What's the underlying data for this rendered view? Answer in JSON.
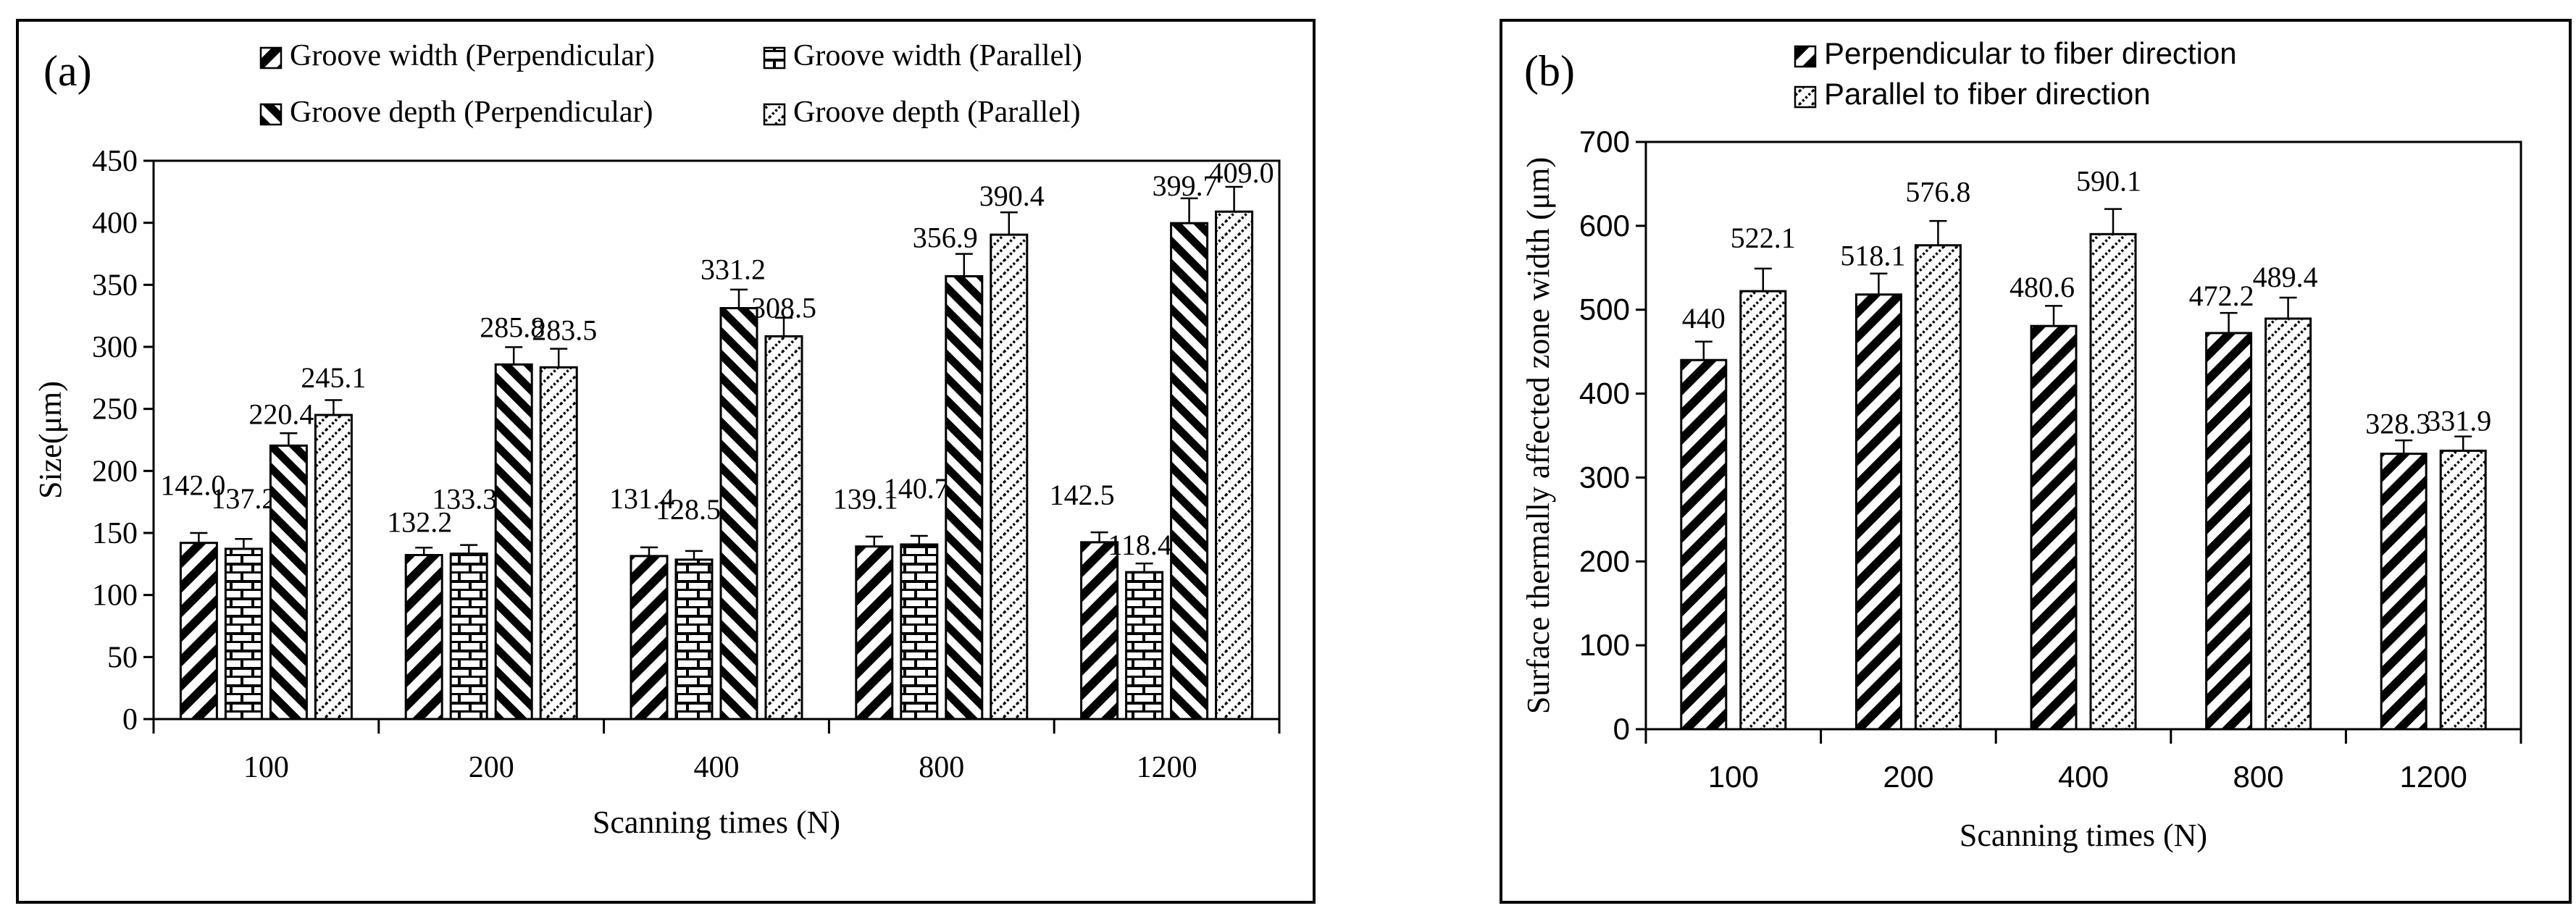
{
  "colors": {
    "ink": "#000000",
    "paper": "#ffffff"
  },
  "chart_data": [
    {
      "type": "bar",
      "panel_label": "(a)",
      "title": "",
      "xlabel": "Scanning times (N)",
      "ylabel": "Size(μm)",
      "ylim": [
        0,
        450
      ],
      "yticks": [
        0,
        50,
        100,
        150,
        200,
        250,
        300,
        350,
        400,
        450
      ],
      "grid": false,
      "legend_position": "top",
      "categories": [
        "100",
        "200",
        "400",
        "800",
        "1200"
      ],
      "series": [
        {
          "name": "Groove width (Perpendicular)",
          "pattern": "diag-wide",
          "values": [
            142.0,
            132.2,
            131.4,
            139.1,
            142.5
          ],
          "labels": [
            "142.0",
            "132.2",
            "131.4",
            "139.1",
            "142.5"
          ],
          "errors": [
            8,
            6,
            7,
            8,
            8
          ]
        },
        {
          "name": "Groove width (Parallel)",
          "pattern": "brick",
          "values": [
            137.2,
            133.3,
            128.5,
            140.7,
            118.4
          ],
          "labels": [
            "137.2",
            "133.3",
            "128.5",
            "140.7",
            "118.4"
          ],
          "errors": [
            8,
            7,
            7,
            7,
            7
          ]
        },
        {
          "name": "Groove depth (Perpendicular)",
          "pattern": "diag-back",
          "values": [
            220.4,
            285.8,
            331.2,
            356.9,
            399.7
          ],
          "labels": [
            "220.4",
            "285.8",
            "331.2",
            "356.9",
            "399.7"
          ],
          "errors": [
            10,
            14,
            15,
            18,
            20
          ]
        },
        {
          "name": "Groove depth (Parallel)",
          "pattern": "zigzag",
          "values": [
            245.1,
            283.5,
            308.5,
            390.4,
            409.0
          ],
          "labels": [
            "245.1",
            "283.5",
            "308.5",
            "390.4",
            "409.0"
          ],
          "errors": [
            12,
            15,
            15,
            18,
            20
          ]
        }
      ]
    },
    {
      "type": "bar",
      "panel_label": "(b)",
      "title": "",
      "xlabel": "Scanning times (N)",
      "ylabel": "Surface thermally affected zone width (μm)",
      "ylim": [
        0,
        700
      ],
      "yticks": [
        0,
        100,
        200,
        300,
        400,
        500,
        600,
        700
      ],
      "grid": false,
      "legend_position": "top",
      "categories": [
        "100",
        "200",
        "400",
        "800",
        "1200"
      ],
      "series": [
        {
          "name": "Perpendicular to fiber direction",
          "pattern": "diag-wide",
          "values": [
            440,
            518.1,
            480.6,
            472.2,
            328.3
          ],
          "labels": [
            "440",
            "518.1",
            "480.6",
            "472.2",
            "328.3"
          ],
          "errors": [
            22,
            25,
            24,
            24,
            16
          ]
        },
        {
          "name": "Parallel to fiber direction",
          "pattern": "zigzag",
          "values": [
            522.1,
            576.8,
            590.1,
            489.4,
            331.9
          ],
          "labels": [
            "522.1",
            "576.8",
            "590.1",
            "489.4",
            "331.9"
          ],
          "errors": [
            27,
            29,
            30,
            25,
            17
          ]
        }
      ]
    }
  ]
}
